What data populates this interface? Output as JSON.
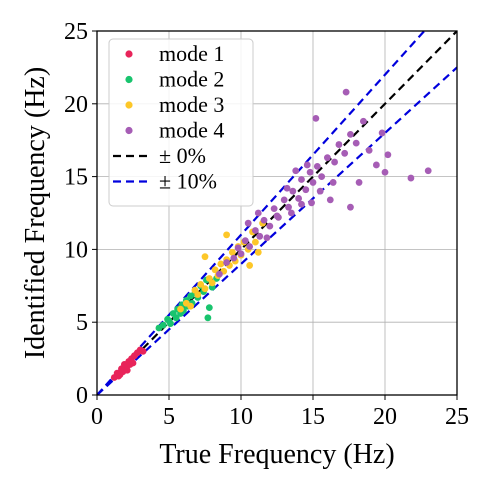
{
  "chart_data": {
    "type": "scatter",
    "xlabel": "True Frequency (Hz)",
    "ylabel": "Identified Frequency (Hz)",
    "xlim": [
      0,
      25
    ],
    "ylim": [
      0,
      25
    ],
    "xticks": [
      "0",
      "5",
      "10",
      "15",
      "20",
      "25"
    ],
    "yticks": [
      "0",
      "5",
      "10",
      "15",
      "20",
      "25"
    ],
    "grid": true,
    "legend_position": "top-left",
    "series": [
      {
        "name": "mode 1",
        "color": "#e8245a",
        "points": [
          [
            1.2,
            1.2
          ],
          [
            1.4,
            1.5
          ],
          [
            1.5,
            1.3
          ],
          [
            1.7,
            1.8
          ],
          [
            1.8,
            1.6
          ],
          [
            1.9,
            2.1
          ],
          [
            2.0,
            1.9
          ],
          [
            2.1,
            2.0
          ],
          [
            2.2,
            2.3
          ],
          [
            2.3,
            2.1
          ],
          [
            2.4,
            2.5
          ],
          [
            2.5,
            2.2
          ],
          [
            2.6,
            2.7
          ],
          [
            2.8,
            2.9
          ],
          [
            3.0,
            3.1
          ],
          [
            3.2,
            3.0
          ],
          [
            1.6,
            1.4
          ],
          [
            2.1,
            1.7
          ]
        ]
      },
      {
        "name": "mode 2",
        "color": "#19c46e",
        "points": [
          [
            4.3,
            4.6
          ],
          [
            4.6,
            4.8
          ],
          [
            4.9,
            5.2
          ],
          [
            5.1,
            4.9
          ],
          [
            5.3,
            5.6
          ],
          [
            5.5,
            5.3
          ],
          [
            5.6,
            5.9
          ],
          [
            5.8,
            5.6
          ],
          [
            5.9,
            6.2
          ],
          [
            6.0,
            5.8
          ],
          [
            6.2,
            6.5
          ],
          [
            6.3,
            6.1
          ],
          [
            6.5,
            6.8
          ],
          [
            6.6,
            6.3
          ],
          [
            6.8,
            7.0
          ],
          [
            7.0,
            6.7
          ],
          [
            7.2,
            7.5
          ],
          [
            7.4,
            7.1
          ],
          [
            7.6,
            7.9
          ],
          [
            7.8,
            6.0
          ],
          [
            7.7,
            5.3
          ],
          [
            8.0,
            7.4
          ],
          [
            8.3,
            8.0
          ],
          [
            5.0,
            5.1
          ]
        ]
      },
      {
        "name": "mode 3",
        "color": "#fdc728",
        "points": [
          [
            5.8,
            5.9
          ],
          [
            6.2,
            6.3
          ],
          [
            6.5,
            6.1
          ],
          [
            6.8,
            7.2
          ],
          [
            7.0,
            6.9
          ],
          [
            7.2,
            7.6
          ],
          [
            7.5,
            7.3
          ],
          [
            7.8,
            8.0
          ],
          [
            8.0,
            7.7
          ],
          [
            8.2,
            8.6
          ],
          [
            8.4,
            8.2
          ],
          [
            8.6,
            9.0
          ],
          [
            8.8,
            8.5
          ],
          [
            9.0,
            9.3
          ],
          [
            9.2,
            8.9
          ],
          [
            9.4,
            9.8
          ],
          [
            9.6,
            9.2
          ],
          [
            9.8,
            10.2
          ],
          [
            10.0,
            9.6
          ],
          [
            10.2,
            10.5
          ],
          [
            10.5,
            10.0
          ],
          [
            10.8,
            11.2
          ],
          [
            11.0,
            10.5
          ],
          [
            11.2,
            9.8
          ],
          [
            11.5,
            11.8
          ],
          [
            7.5,
            9.5
          ],
          [
            10.6,
            8.9
          ],
          [
            9.0,
            11.0
          ]
        ]
      },
      {
        "name": "mode 4",
        "color": "#a65db5",
        "points": [
          [
            8.5,
            8.3
          ],
          [
            9.0,
            9.1
          ],
          [
            9.5,
            9.4
          ],
          [
            9.8,
            10.1
          ],
          [
            10.0,
            9.7
          ],
          [
            10.3,
            10.6
          ],
          [
            10.6,
            10.2
          ],
          [
            11.0,
            11.3
          ],
          [
            11.3,
            10.9
          ],
          [
            11.6,
            12.0
          ],
          [
            12.0,
            11.6
          ],
          [
            12.3,
            12.8
          ],
          [
            12.6,
            12.2
          ],
          [
            13.0,
            13.4
          ],
          [
            13.3,
            12.9
          ],
          [
            13.6,
            14.0
          ],
          [
            14.0,
            13.5
          ],
          [
            14.2,
            14.8
          ],
          [
            14.5,
            14.1
          ],
          [
            14.8,
            15.3
          ],
          [
            15.0,
            14.6
          ],
          [
            15.3,
            15.7
          ],
          [
            15.6,
            15.0
          ],
          [
            16.0,
            16.3
          ],
          [
            16.5,
            16.0
          ],
          [
            16.8,
            17.2
          ],
          [
            17.2,
            16.6
          ],
          [
            17.6,
            17.9
          ],
          [
            18.0,
            17.3
          ],
          [
            18.5,
            18.8
          ],
          [
            12.5,
            12.3
          ],
          [
            13.2,
            14.2
          ],
          [
            14.6,
            15.8
          ],
          [
            15.2,
            19.0
          ],
          [
            17.3,
            20.8
          ],
          [
            18.9,
            16.8
          ],
          [
            20.0,
            15.3
          ],
          [
            21.8,
            14.9
          ],
          [
            23.0,
            15.4
          ],
          [
            17.6,
            12.9
          ],
          [
            16.2,
            13.4
          ],
          [
            18.2,
            14.6
          ],
          [
            19.4,
            15.8
          ],
          [
            19.8,
            18.0
          ],
          [
            20.2,
            16.5
          ],
          [
            16.4,
            14.6
          ],
          [
            14.2,
            13.1
          ],
          [
            13.5,
            12.5
          ],
          [
            11.8,
            10.8
          ],
          [
            11.2,
            12.5
          ],
          [
            15.5,
            14.0
          ],
          [
            13.8,
            15.4
          ],
          [
            10.5,
            11.8
          ],
          [
            14.9,
            13.2
          ]
        ]
      }
    ],
    "reference_lines": [
      {
        "name": "± 0%",
        "slope": 1.0,
        "color": "#000000",
        "dash": true
      },
      {
        "name": "± 10%",
        "slope_upper": 1.1,
        "slope_lower": 0.9,
        "color": "#0000dd",
        "dash": true
      }
    ]
  }
}
